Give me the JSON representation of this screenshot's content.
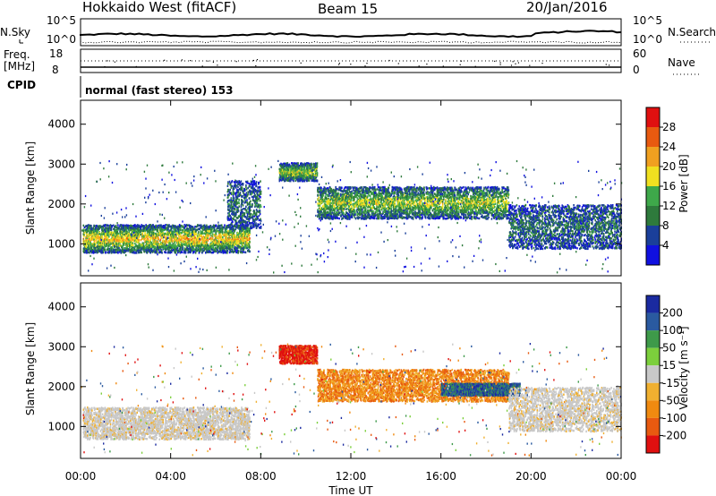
{
  "header": {
    "station": "Hokkaido West (fitACF)",
    "beam": "Beam 15",
    "date": "20/Jan/2016"
  },
  "strip": {
    "nsky_label": "N.Sky",
    "nsearch_label": "N.Search",
    "noise_ticks_left": [
      "10^5",
      "10^0"
    ],
    "noise_ticks_right": [
      "10^5",
      "10^0"
    ],
    "freq_label": "Freq.",
    "freq_unit": "[MHz]",
    "freq_ticks": [
      "18",
      "8"
    ],
    "nave_label": "Nave",
    "nave_ticks": [
      "60",
      "0"
    ],
    "cpid_label": "CPID",
    "cpid_text": "normal (fast stereo) 153"
  },
  "colors": {
    "power_scale": [
      "#1010e0",
      "#1a3f9a",
      "#2e7a3c",
      "#3ea84a",
      "#f0e020",
      "#f0a020",
      "#e85a10",
      "#e01010"
    ],
    "velocity_scale": [
      "#e01010",
      "#e85a10",
      "#f08a10",
      "#f0b030",
      "#c8c8c8",
      "#7ccf3c",
      "#3e9a4a",
      "#2a5aa0",
      "#1a2aa0"
    ]
  },
  "chart_data": [
    {
      "type": "heatmap",
      "name": "power",
      "xlabel": "",
      "ylabel": "Slant Range [km]",
      "xlim": [
        0,
        24
      ],
      "ylim": [
        200,
        4600
      ],
      "y_ticks": [
        "1000",
        "2000",
        "3000",
        "4000"
      ],
      "colorbar": {
        "label": "Power [dB]",
        "ticks": [
          "4",
          "8",
          "12",
          "16",
          "20",
          "24",
          "28"
        ],
        "range": [
          0,
          32
        ]
      },
      "echo_regions": [
        {
          "t_start": 0.1,
          "t_end": 7.5,
          "range_low": 800,
          "range_high": 1500,
          "level": "high"
        },
        {
          "t_start": 6.5,
          "t_end": 8.0,
          "range_low": 1400,
          "range_high": 2600,
          "level": "low"
        },
        {
          "t_start": 8.8,
          "t_end": 10.5,
          "range_low": 2600,
          "range_high": 3050,
          "level": "mid"
        },
        {
          "t_start": 10.5,
          "t_end": 19.0,
          "range_low": 1650,
          "range_high": 2450,
          "level": "mid"
        },
        {
          "t_start": 19.0,
          "t_end": 24.0,
          "range_low": 900,
          "range_high": 2000,
          "level": "low"
        }
      ]
    },
    {
      "type": "heatmap",
      "name": "velocity",
      "xlabel": "Time UT",
      "ylabel": "Slant Range [km]",
      "xlim": [
        0,
        24
      ],
      "x_ticks": [
        "00:00",
        "04:00",
        "08:00",
        "12:00",
        "16:00",
        "20:00",
        "00:00"
      ],
      "ylim": [
        200,
        4600
      ],
      "y_ticks": [
        "1000",
        "2000",
        "3000",
        "4000"
      ],
      "colorbar": {
        "label": "Velocity [m s⁻¹]",
        "ticks": [
          "200",
          "100",
          "50",
          "15",
          "-15",
          "-50",
          "-100",
          "-200"
        ],
        "range": [
          -250,
          250
        ]
      },
      "echo_regions": [
        {
          "t_start": 0.1,
          "t_end": 7.5,
          "range_low": 700,
          "range_high": 1500,
          "level": "ground"
        },
        {
          "t_start": 8.8,
          "t_end": 10.5,
          "range_low": 2600,
          "range_high": 3050,
          "level": "negative-high"
        },
        {
          "t_start": 10.5,
          "t_end": 19.0,
          "range_low": 1650,
          "range_high": 2450,
          "level": "negative"
        },
        {
          "t_start": 16.0,
          "t_end": 19.5,
          "range_low": 1800,
          "range_high": 2100,
          "level": "positive"
        },
        {
          "t_start": 19.0,
          "t_end": 24.0,
          "range_low": 900,
          "range_high": 2000,
          "level": "ground"
        }
      ]
    }
  ]
}
